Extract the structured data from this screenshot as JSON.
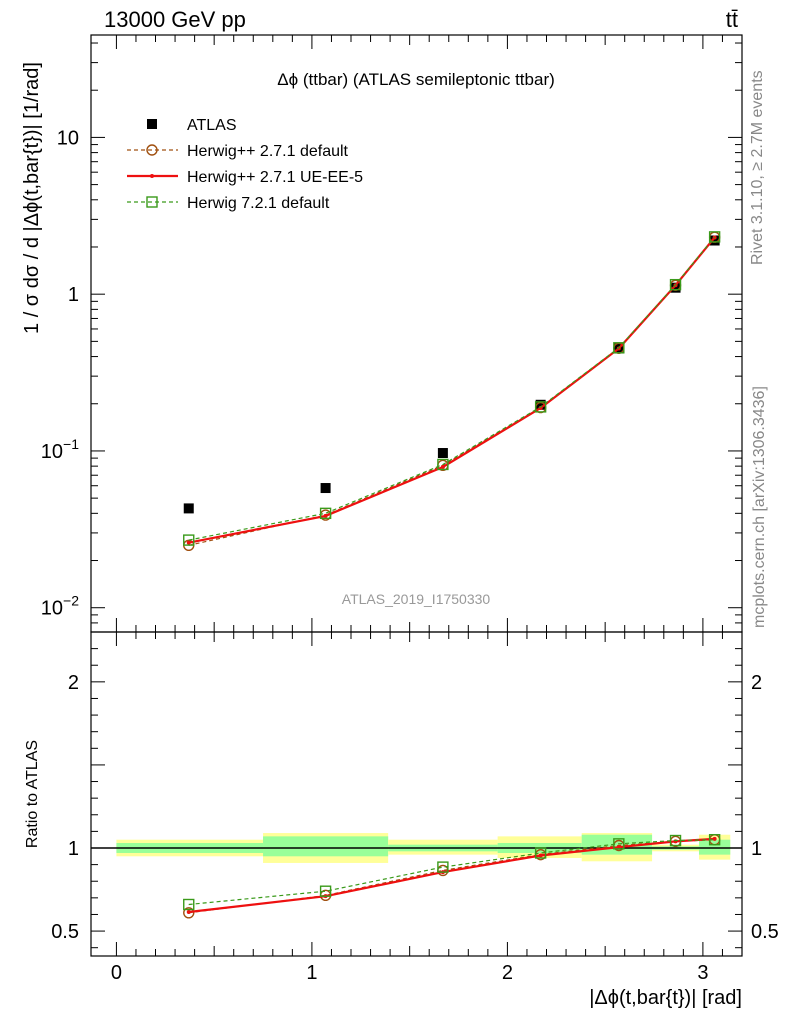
{
  "header": {
    "left": "13000 GeV pp",
    "right": "tt̄"
  },
  "side_labels": {
    "top": "Rivet 3.1.10, ≥ 2.7M events",
    "bottom": "mcplots.cern.ch [arXiv:1306.3436]"
  },
  "chart_data": [
    {
      "type": "scatter",
      "panel": "main",
      "title": "Δϕ (ttbar) (ATLAS semileptonic ttbar)",
      "watermark": "ATLAS_2019_I1750330",
      "xlabel": "",
      "ylabel": "1 / σ dσ / d |Δϕ(t,bar{t})| [1/rad]",
      "yscale": "log",
      "ylim": [
        0.007,
        45
      ],
      "xlim": [
        -0.13,
        3.2
      ],
      "yticks": [
        {
          "value": 0.01,
          "base": "10",
          "exp": "−2"
        },
        {
          "value": 0.1,
          "base": "10",
          "exp": "−1"
        },
        {
          "value": 1,
          "base": "1",
          "exp": ""
        },
        {
          "value": 10,
          "base": "10",
          "exp": ""
        }
      ],
      "legend_position": "top-left",
      "series": [
        {
          "name": "ATLAS",
          "style": "data",
          "color": "#000000",
          "x": [
            0.37,
            1.07,
            1.67,
            2.17,
            2.57,
            2.86,
            3.06
          ],
          "y": [
            0.043,
            0.058,
            0.097,
            0.197,
            0.45,
            1.1,
            2.2
          ]
        },
        {
          "name": "Herwig++ 2.7.1 default",
          "style": "dashed-circle",
          "color": "#a05010",
          "x": [
            0.37,
            1.07,
            1.67,
            2.17,
            2.57,
            2.86,
            3.06
          ],
          "y": [
            0.025,
            0.039,
            0.081,
            0.189,
            0.452,
            1.14,
            2.31
          ]
        },
        {
          "name": "Herwig++ 2.7.1 UE-EE-5",
          "style": "solid",
          "color": "#ee1010",
          "x": [
            0.37,
            1.07,
            1.67,
            2.17,
            2.57,
            2.86,
            3.06
          ],
          "y": [
            0.026,
            0.0385,
            0.079,
            0.188,
            0.45,
            1.14,
            2.3
          ]
        },
        {
          "name": "Herwig 7.2.1 default",
          "style": "dashed-square",
          "color": "#3a9a1a",
          "x": [
            0.37,
            1.07,
            1.67,
            2.17,
            2.57,
            2.86,
            3.06
          ],
          "y": [
            0.027,
            0.04,
            0.082,
            0.191,
            0.455,
            1.15,
            2.32
          ]
        }
      ]
    },
    {
      "type": "scatter",
      "panel": "ratio",
      "xlabel": "|Δϕ(t,bar{t})| [rad]",
      "ylabel": "Ratio to ATLAS",
      "ylim": [
        0.35,
        2.3
      ],
      "xlim": [
        -0.13,
        3.2
      ],
      "yticks": [
        0.5,
        1,
        2
      ],
      "xticks": [
        0,
        1,
        2,
        3
      ],
      "bands": [
        {
          "x0": 0.0,
          "x1": 0.75,
          "stat": [
            0.97,
            1.03
          ],
          "total": [
            0.95,
            1.05
          ]
        },
        {
          "x0": 0.75,
          "x1": 1.39,
          "stat": [
            0.95,
            1.07
          ],
          "total": [
            0.91,
            1.09
          ]
        },
        {
          "x0": 1.39,
          "x1": 1.95,
          "stat": [
            0.98,
            1.02
          ],
          "total": [
            0.96,
            1.05
          ]
        },
        {
          "x0": 1.95,
          "x1": 2.38,
          "stat": [
            0.97,
            1.03
          ],
          "total": [
            0.94,
            1.07
          ]
        },
        {
          "x0": 2.38,
          "x1": 2.74,
          "stat": [
            0.96,
            1.08
          ],
          "total": [
            0.92,
            1.09
          ]
        },
        {
          "x0": 2.74,
          "x1": 2.98,
          "stat": [
            0.99,
            1.01
          ],
          "total": [
            0.98,
            1.02
          ]
        },
        {
          "x0": 2.98,
          "x1": 3.14,
          "stat": [
            0.96,
            1.05
          ],
          "total": [
            0.93,
            1.08
          ]
        }
      ],
      "series": [
        {
          "name": "Herwig++ 2.7.1 default",
          "style": "dashed-circle",
          "color": "#a05010",
          "x": [
            0.37,
            1.07,
            1.67,
            2.17,
            2.57,
            2.86,
            3.06
          ],
          "y": [
            0.61,
            0.715,
            0.865,
            0.96,
            1.015,
            1.04,
            1.05
          ]
        },
        {
          "name": "Herwig++ 2.7.1 UE-EE-5",
          "style": "solid",
          "color": "#ee1010",
          "x": [
            0.37,
            1.07,
            1.67,
            2.17,
            2.57,
            2.86,
            3.06
          ],
          "y": [
            0.615,
            0.71,
            0.855,
            0.955,
            1.005,
            1.04,
            1.055
          ]
        },
        {
          "name": "Herwig 7.2.1 default",
          "style": "dashed-square",
          "color": "#3a9a1a",
          "x": [
            0.37,
            1.07,
            1.67,
            2.17,
            2.57,
            2.86,
            3.06
          ],
          "y": [
            0.66,
            0.74,
            0.885,
            0.97,
            1.025,
            1.045,
            1.05
          ]
        }
      ]
    }
  ]
}
